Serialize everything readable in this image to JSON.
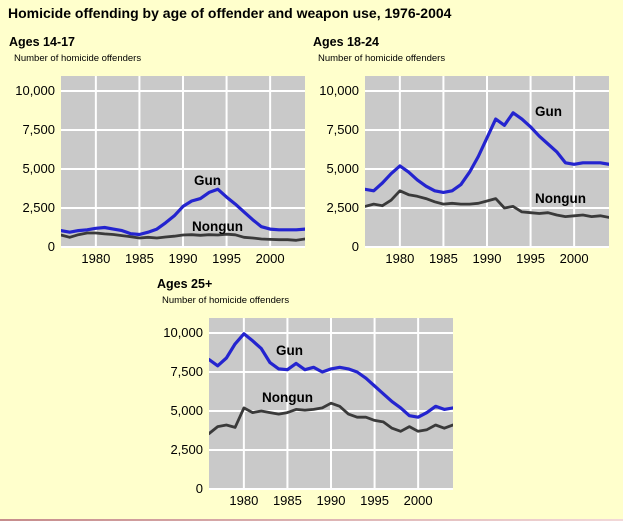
{
  "page": {
    "title": "Homicide offending by age of offender and weapon use, 1976-2004"
  },
  "colors": {
    "page_bg": "#ffffcc",
    "plot_bg": "#c9c9c9",
    "grid": "#ffffff",
    "gun": "#2424cf",
    "nongun": "#3a3a3a",
    "bottom_rule": "#c68c8c"
  },
  "chart_data": [
    {
      "type": "line",
      "title": "Ages 14-17",
      "ylabel": "Number of homicide offenders",
      "x_start": 1976,
      "x_end": 2004,
      "xticks": [
        1980,
        1985,
        1990,
        1995,
        2000
      ],
      "ytick_labels": [
        "0",
        "2,500",
        "5,000",
        "7,500",
        "10,000"
      ],
      "ytick_values": [
        0,
        2500,
        5000,
        7500,
        10000
      ],
      "ylim": [
        0,
        11000
      ],
      "grid": true,
      "series": [
        {
          "name": "Gun",
          "color_key": "gun",
          "values": [
            1050,
            950,
            1050,
            1100,
            1200,
            1250,
            1150,
            1050,
            850,
            800,
            950,
            1150,
            1550,
            2000,
            2600,
            2950,
            3100,
            3500,
            3700,
            3200,
            2750,
            2250,
            1750,
            1300,
            1150,
            1100,
            1100,
            1100,
            1150
          ],
          "label": {
            "x": 133,
            "y": 97
          }
        },
        {
          "name": "Nongun",
          "color_key": "nongun",
          "values": [
            770,
            620,
            790,
            900,
            900,
            840,
            800,
            730,
            660,
            580,
            620,
            580,
            640,
            690,
            770,
            790,
            750,
            790,
            770,
            820,
            780,
            620,
            580,
            510,
            490,
            470,
            470,
            430,
            510
          ],
          "label": {
            "x": 131,
            "y": 143
          }
        }
      ]
    },
    {
      "type": "line",
      "title": "Ages 18-24",
      "ylabel": "Number of homicide offenders",
      "x_start": 1976,
      "x_end": 2004,
      "xticks": [
        1980,
        1985,
        1990,
        1995,
        2000
      ],
      "ytick_labels": [
        "0",
        "2,500",
        "5,000",
        "7,500",
        "10,000"
      ],
      "ytick_values": [
        0,
        2500,
        5000,
        7500,
        10000
      ],
      "ylim": [
        0,
        11000
      ],
      "grid": true,
      "series": [
        {
          "name": "Gun",
          "color_key": "gun",
          "values": [
            3700,
            3600,
            4100,
            4700,
            5200,
            4800,
            4300,
            3900,
            3600,
            3500,
            3600,
            4000,
            4800,
            5800,
            7000,
            8200,
            7800,
            8600,
            8200,
            7700,
            7100,
            6600,
            6100,
            5400,
            5300,
            5400,
            5400,
            5400,
            5300
          ],
          "label": {
            "x": 170,
            "y": 28
          }
        },
        {
          "name": "Nongun",
          "color_key": "nongun",
          "values": [
            2600,
            2750,
            2650,
            3000,
            3600,
            3350,
            3250,
            3100,
            2900,
            2750,
            2800,
            2750,
            2750,
            2800,
            2950,
            3100,
            2500,
            2600,
            2250,
            2200,
            2150,
            2200,
            2050,
            1950,
            2000,
            2050,
            1950,
            2000,
            1900
          ],
          "label": {
            "x": 170,
            "y": 115
          }
        }
      ]
    },
    {
      "type": "line",
      "title": "Ages 25+",
      "ylabel": "Number of homicide offenders",
      "x_start": 1976,
      "x_end": 2004,
      "xticks": [
        1980,
        1985,
        1990,
        1995,
        2000
      ],
      "ytick_labels": [
        "0",
        "2,500",
        "5,000",
        "7,500",
        "10,000"
      ],
      "ytick_values": [
        0,
        2500,
        5000,
        7500,
        10000
      ],
      "ylim": [
        0,
        11000
      ],
      "grid": true,
      "series": [
        {
          "name": "Gun",
          "color_key": "gun",
          "values": [
            8300,
            7900,
            8400,
            9300,
            9950,
            9500,
            9000,
            8100,
            7700,
            7650,
            8050,
            7650,
            7800,
            7500,
            7700,
            7800,
            7700,
            7500,
            7100,
            6600,
            6100,
            5600,
            5200,
            4700,
            4600,
            4900,
            5300,
            5100,
            5200
          ],
          "label": {
            "x": 67,
            "y": 25
          }
        },
        {
          "name": "Nongun",
          "color_key": "nongun",
          "values": [
            3550,
            4000,
            4100,
            3950,
            5200,
            4900,
            5000,
            4900,
            4800,
            4900,
            5100,
            5050,
            5100,
            5200,
            5500,
            5300,
            4800,
            4600,
            4600,
            4400,
            4300,
            3900,
            3700,
            4000,
            3700,
            3800,
            4100,
            3900,
            4100
          ],
          "label": {
            "x": 53,
            "y": 72
          }
        }
      ]
    }
  ]
}
